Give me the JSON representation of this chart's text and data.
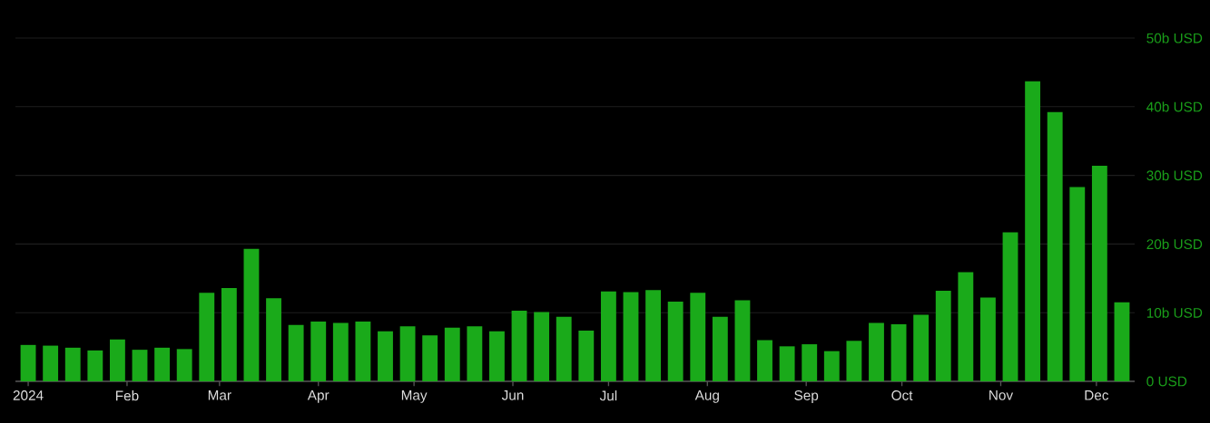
{
  "chart_data": {
    "type": "bar",
    "x": [
      "2024-01-01",
      "2024-01-08",
      "2024-01-15",
      "2024-01-22",
      "2024-01-29",
      "2024-02-05",
      "2024-02-12",
      "2024-02-19",
      "2024-02-26",
      "2024-03-04",
      "2024-03-11",
      "2024-03-18",
      "2024-03-25",
      "2024-04-01",
      "2024-04-08",
      "2024-04-15",
      "2024-04-22",
      "2024-04-29",
      "2024-05-06",
      "2024-05-13",
      "2024-05-20",
      "2024-05-27",
      "2024-06-03",
      "2024-06-10",
      "2024-06-17",
      "2024-06-24",
      "2024-07-01",
      "2024-07-08",
      "2024-07-15",
      "2024-07-22",
      "2024-07-29",
      "2024-08-05",
      "2024-08-12",
      "2024-08-19",
      "2024-08-26",
      "2024-09-02",
      "2024-09-09",
      "2024-09-16",
      "2024-09-23",
      "2024-09-30",
      "2024-10-07",
      "2024-10-14",
      "2024-10-21",
      "2024-10-28",
      "2024-11-04",
      "2024-11-11",
      "2024-11-18",
      "2024-11-25",
      "2024-12-02",
      "2024-12-09"
    ],
    "values": [
      5.3,
      5.2,
      4.9,
      4.5,
      6.1,
      4.6,
      4.9,
      4.7,
      12.9,
      13.6,
      19.3,
      12.1,
      8.2,
      8.7,
      8.5,
      8.7,
      7.3,
      8.0,
      6.7,
      7.8,
      8.0,
      7.3,
      10.3,
      10.1,
      9.4,
      7.4,
      13.1,
      13.0,
      13.3,
      11.6,
      12.9,
      9.4,
      11.8,
      6.0,
      5.1,
      5.4,
      4.4,
      5.9,
      8.5,
      8.3,
      9.7,
      13.2,
      15.9,
      12.2,
      21.7,
      43.7,
      39.2,
      28.3,
      31.4,
      11.5
    ],
    "color": "#1aaa1a",
    "xlim": [
      "2023-12-28",
      "2024-12-13"
    ],
    "xticks": [
      {
        "value": "2024-01-01",
        "label": "2024"
      },
      {
        "value": "2024-02-01",
        "label": "Feb"
      },
      {
        "value": "2024-03-01",
        "label": "Mar"
      },
      {
        "value": "2024-04-01",
        "label": "Apr"
      },
      {
        "value": "2024-05-01",
        "label": "May"
      },
      {
        "value": "2024-06-01",
        "label": "Jun"
      },
      {
        "value": "2024-07-01",
        "label": "Jul"
      },
      {
        "value": "2024-08-01",
        "label": "Aug"
      },
      {
        "value": "2024-09-01",
        "label": "Sep"
      },
      {
        "value": "2024-10-01",
        "label": "Oct"
      },
      {
        "value": "2024-11-01",
        "label": "Nov"
      },
      {
        "value": "2024-12-01",
        "label": "Dec"
      }
    ],
    "ylim": [
      0,
      50
    ],
    "yticks": [
      {
        "value": 0,
        "label": "0 USD"
      },
      {
        "value": 10,
        "label": "10b USD"
      },
      {
        "value": 20,
        "label": "20b USD"
      },
      {
        "value": 30,
        "label": "30b USD"
      },
      {
        "value": 40,
        "label": "40b USD"
      },
      {
        "value": 50,
        "label": "50b USD"
      }
    ],
    "grid": "y"
  }
}
